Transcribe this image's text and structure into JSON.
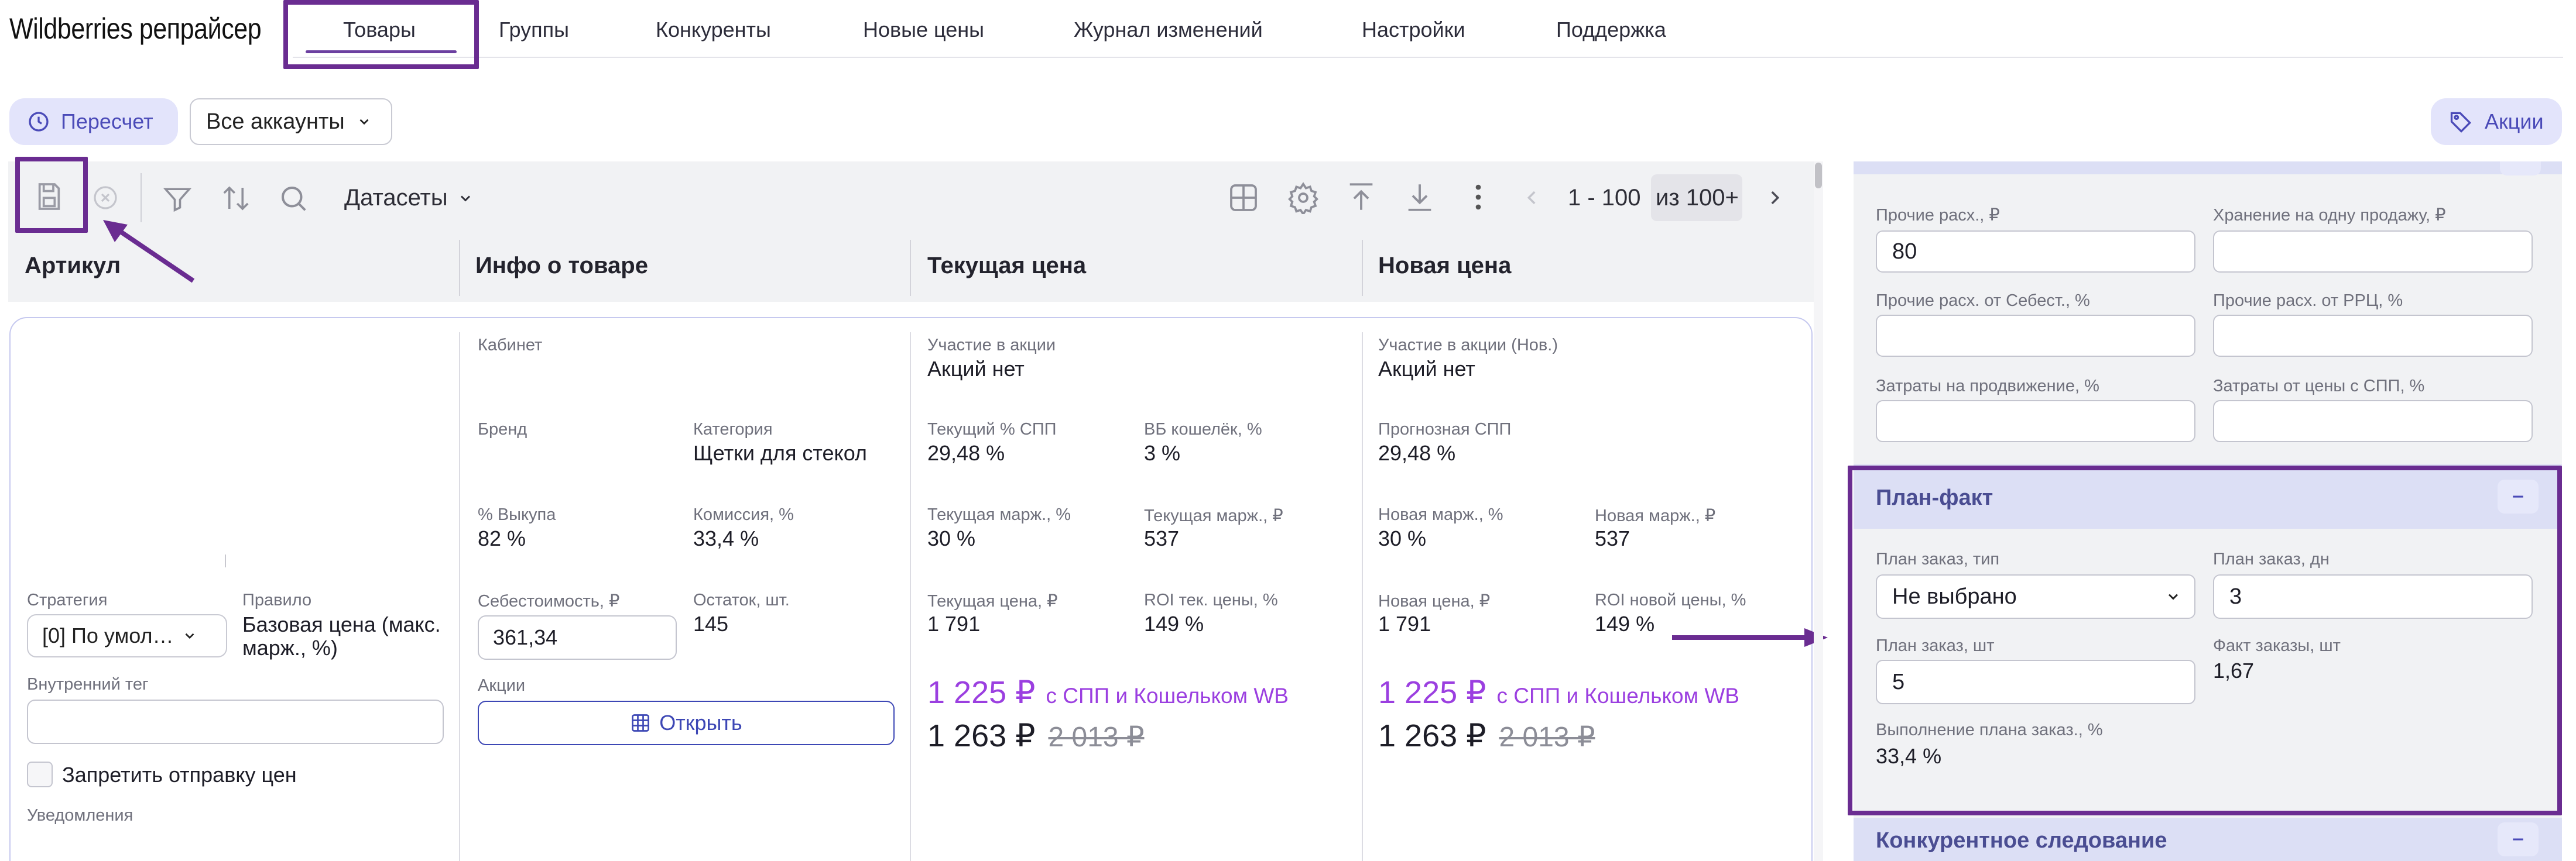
{
  "app": {
    "title": "Wildberries репрайсер"
  },
  "nav": {
    "tabs": [
      "Товары",
      "Группы",
      "Конкуренты",
      "Новые цены",
      "Журнал изменений",
      "Настройки",
      "Поддержка"
    ]
  },
  "actions": {
    "recalc_label": "Пересчет",
    "accounts_select": "Все аккаунты",
    "promo_label": "Акции"
  },
  "toolbar": {
    "datasets_label": "Датасеты",
    "pagination_range": "1 - 100",
    "pagination_total": "из 100+"
  },
  "table": {
    "columns": [
      "Артикул",
      "Инфо о товаре",
      "Текущая цена",
      "Новая цена"
    ]
  },
  "article": {
    "strategy_label": "Стратегия",
    "strategy_value": "[0] По умол…",
    "rule_label": "Правило",
    "rule_value": "Базовая цена (макс. марж., %)",
    "tag_label": "Внутренний тег",
    "tag_value": "",
    "block_prices_label": "Запретить отправку цен",
    "notifications_label": "Уведомления"
  },
  "info": {
    "cabinet_label": "Кабинет",
    "cabinet_value": "",
    "brand_label": "Бренд",
    "brand_value": "",
    "category_label": "Категория",
    "category_value": "Щетки для стекол",
    "buyout_label": "% Выкупа",
    "buyout_value": "82 %",
    "commission_label": "Комиссия, %",
    "commission_value": "33,4 %",
    "cost_label": "Себестоимость, ₽",
    "cost_value": "361,34",
    "stock_label": "Остаток, шт.",
    "stock_value": "145",
    "promos_label": "Акции",
    "open_label": "Открыть"
  },
  "current_price": {
    "promo_label": "Участие в акции",
    "promo_value": "Акций нет",
    "spp_label": "Текущий % СПП",
    "spp_value": "29,48 %",
    "wallet_label": "ВБ кошелёк, %",
    "wallet_value": "3 %",
    "margin_pct_label": "Текущая марж., %",
    "margin_pct_value": "30 %",
    "margin_rub_label": "Текущая марж., ₽",
    "margin_rub_value": "537",
    "price_label": "Текущая цена, ₽",
    "price_value": "1 791",
    "roi_label": "ROI тек. цены, %",
    "roi_value": "149 %",
    "spp_price": "1 225 ₽",
    "spp_price_note": "с СПП и Кошельком WB",
    "final_price": "1 263 ₽",
    "old_price": "2 013 ₽"
  },
  "new_price": {
    "promo_label": "Участие в акции (Нов.)",
    "promo_value": "Акций нет",
    "spp_label": "Прогнозная СПП",
    "spp_value": "29,48 %",
    "margin_pct_label": "Новая марж., %",
    "margin_pct_value": "30 %",
    "margin_rub_label": "Новая марж., ₽",
    "margin_rub_value": "537",
    "price_label": "Новая цена, ₽",
    "price_value": "1 791",
    "roi_label": "ROI новой цены, %",
    "roi_value": "149 %",
    "spp_price": "1 225 ₽",
    "spp_price_note": "с СПП и Кошельком WB",
    "final_price": "1 263 ₽",
    "old_price": "2 013 ₽"
  },
  "right_panel": {
    "expenses": {
      "other_label": "Прочие расх., ₽",
      "other_value": "80",
      "storage_label": "Хранение на одну продажу, ₽",
      "storage_value": "",
      "other_cost_label": "Прочие расх. от Себест., %",
      "other_cost_value": "",
      "other_rrp_label": "Прочие расх. от РРЦ, %",
      "other_rrp_value": "",
      "promo_cost_label": "Затраты на продвижение, %",
      "promo_cost_value": "",
      "spp_cost_label": "Затраты от цены с СПП, %",
      "spp_cost_value": ""
    },
    "plan_fact": {
      "title": "План-факт",
      "plan_type_label": "План заказ, тип",
      "plan_type_value": "Не выбрано",
      "plan_days_label": "План заказ, дн",
      "plan_days_value": "3",
      "plan_qty_label": "План заказ, шт",
      "plan_qty_value": "5",
      "fact_label": "Факт заказы, шт",
      "fact_value": "1,67",
      "exec_label": "Выполнение плана заказ., %",
      "exec_value": "33,4 %"
    },
    "competitive": {
      "title": "Конкурентное следование"
    }
  },
  "colors": {
    "accent_purple": "#9b3fe0",
    "highlight_frame": "#6a2c91",
    "primary_blue": "#3d47b5",
    "pill_bg": "#e3e4fb"
  }
}
